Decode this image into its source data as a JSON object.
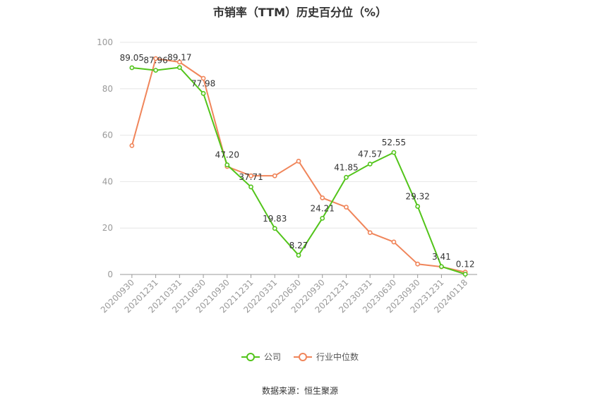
{
  "chart_data": {
    "type": "line",
    "title": "市销率（TTM）历史百分位（%）",
    "xlabel": "",
    "ylabel": "",
    "ylim": [
      0,
      100
    ],
    "yticks": [
      0,
      20,
      40,
      60,
      80,
      100
    ],
    "grid": true,
    "legend_position": "bottom",
    "categories": [
      "20200930",
      "20201231",
      "20210331",
      "20210630",
      "20210930",
      "20211231",
      "20220331",
      "20220630",
      "20220930",
      "20221231",
      "20230331",
      "20230630",
      "20230930",
      "20231231",
      "20240118"
    ],
    "series": [
      {
        "name": "公司",
        "color": "#52c41a",
        "values": [
          89.05,
          87.96,
          89.17,
          77.98,
          47.2,
          37.71,
          19.83,
          8.27,
          24.21,
          41.85,
          47.57,
          52.55,
          29.32,
          3.41,
          0.12
        ],
        "labels": [
          "89.05",
          "87.96",
          "89.17",
          "77.98",
          "47.20",
          "37.71",
          "19.83",
          "8.27",
          "24.21",
          "41.85",
          "47.57",
          "52.55",
          "29.32",
          "3.41",
          "0.12"
        ]
      },
      {
        "name": "行业中位数",
        "color": "#f0855a",
        "values": [
          55.5,
          93,
          91.5,
          84.5,
          46.5,
          42.5,
          42.5,
          48.8,
          33,
          29,
          18,
          14,
          4.5,
          3.3,
          1
        ]
      }
    ]
  },
  "source_note": "数据来源：恒生聚源"
}
